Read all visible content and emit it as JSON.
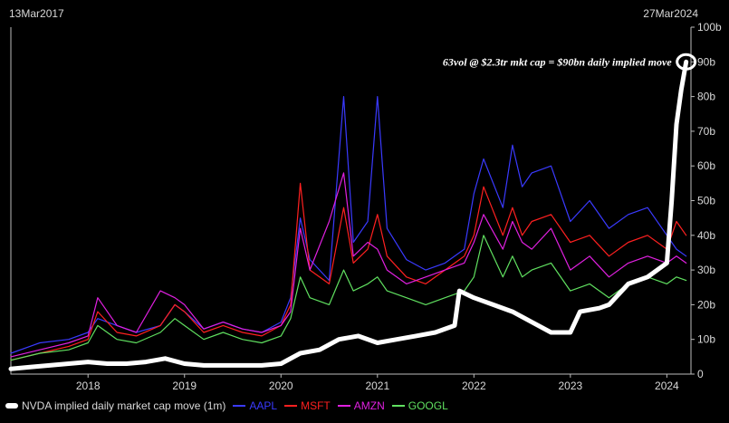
{
  "header": {
    "start_date": "13Mar2017",
    "end_date": "27Mar2024"
  },
  "annotation": "63vol @ $2.3tr mkt cap = $90bn daily implied move",
  "chart_data": {
    "type": "line",
    "x_range": [
      2017.2,
      2024.25
    ],
    "ylim": [
      0,
      100
    ],
    "x_ticks": [
      {
        "value": 2018,
        "label": "2018"
      },
      {
        "value": 2019,
        "label": "2019"
      },
      {
        "value": 2020,
        "label": "2020"
      },
      {
        "value": 2021,
        "label": "2021"
      },
      {
        "value": 2022,
        "label": "2022"
      },
      {
        "value": 2023,
        "label": "2023"
      },
      {
        "value": 2024,
        "label": "2024"
      }
    ],
    "y_ticks": [
      {
        "value": 0,
        "label": "0"
      },
      {
        "value": 10,
        "label": "10b"
      },
      {
        "value": 20,
        "label": "20b"
      },
      {
        "value": 30,
        "label": "30b"
      },
      {
        "value": 40,
        "label": "40b"
      },
      {
        "value": 50,
        "label": "50b"
      },
      {
        "value": 60,
        "label": "60b"
      },
      {
        "value": 70,
        "label": "70b"
      },
      {
        "value": 80,
        "label": "80b"
      },
      {
        "value": 90,
        "label": "90b"
      },
      {
        "value": 100,
        "label": "100b"
      }
    ],
    "series": [
      {
        "name": "AAPL",
        "color": "#3a3aff",
        "points": [
          [
            2017.2,
            6
          ],
          [
            2017.5,
            9
          ],
          [
            2017.8,
            10
          ],
          [
            2018.0,
            12
          ],
          [
            2018.1,
            16
          ],
          [
            2018.3,
            14
          ],
          [
            2018.5,
            12
          ],
          [
            2018.75,
            14
          ],
          [
            2018.9,
            20
          ],
          [
            2019.0,
            18
          ],
          [
            2019.2,
            13
          ],
          [
            2019.4,
            15
          ],
          [
            2019.6,
            13
          ],
          [
            2019.8,
            12
          ],
          [
            2020.0,
            15
          ],
          [
            2020.1,
            22
          ],
          [
            2020.2,
            45
          ],
          [
            2020.3,
            33
          ],
          [
            2020.5,
            27
          ],
          [
            2020.65,
            80
          ],
          [
            2020.75,
            38
          ],
          [
            2020.9,
            44
          ],
          [
            2021.0,
            80
          ],
          [
            2021.1,
            42
          ],
          [
            2021.3,
            33
          ],
          [
            2021.5,
            30
          ],
          [
            2021.7,
            32
          ],
          [
            2021.9,
            36
          ],
          [
            2022.0,
            52
          ],
          [
            2022.1,
            62
          ],
          [
            2022.3,
            48
          ],
          [
            2022.4,
            66
          ],
          [
            2022.5,
            54
          ],
          [
            2022.6,
            58
          ],
          [
            2022.8,
            60
          ],
          [
            2023.0,
            44
          ],
          [
            2023.2,
            50
          ],
          [
            2023.4,
            42
          ],
          [
            2023.6,
            46
          ],
          [
            2023.8,
            48
          ],
          [
            2024.0,
            40
          ],
          [
            2024.1,
            36
          ],
          [
            2024.2,
            34
          ]
        ]
      },
      {
        "name": "MSFT",
        "color": "#ff2020",
        "points": [
          [
            2017.2,
            4
          ],
          [
            2017.5,
            6
          ],
          [
            2017.8,
            8
          ],
          [
            2018.0,
            10
          ],
          [
            2018.1,
            18
          ],
          [
            2018.3,
            12
          ],
          [
            2018.5,
            11
          ],
          [
            2018.75,
            14
          ],
          [
            2018.9,
            20
          ],
          [
            2019.0,
            18
          ],
          [
            2019.2,
            12
          ],
          [
            2019.4,
            14
          ],
          [
            2019.6,
            12
          ],
          [
            2019.8,
            11
          ],
          [
            2020.0,
            14
          ],
          [
            2020.1,
            20
          ],
          [
            2020.2,
            55
          ],
          [
            2020.3,
            30
          ],
          [
            2020.5,
            26
          ],
          [
            2020.65,
            48
          ],
          [
            2020.75,
            32
          ],
          [
            2020.9,
            36
          ],
          [
            2021.0,
            46
          ],
          [
            2021.1,
            34
          ],
          [
            2021.3,
            28
          ],
          [
            2021.5,
            26
          ],
          [
            2021.7,
            30
          ],
          [
            2021.9,
            34
          ],
          [
            2022.0,
            40
          ],
          [
            2022.1,
            54
          ],
          [
            2022.3,
            40
          ],
          [
            2022.4,
            48
          ],
          [
            2022.5,
            40
          ],
          [
            2022.6,
            44
          ],
          [
            2022.8,
            46
          ],
          [
            2023.0,
            38
          ],
          [
            2023.2,
            40
          ],
          [
            2023.4,
            34
          ],
          [
            2023.6,
            38
          ],
          [
            2023.8,
            40
          ],
          [
            2024.0,
            36
          ],
          [
            2024.1,
            44
          ],
          [
            2024.2,
            40
          ]
        ]
      },
      {
        "name": "AMZN",
        "color": "#e020e0",
        "points": [
          [
            2017.2,
            5
          ],
          [
            2017.5,
            7
          ],
          [
            2017.8,
            9
          ],
          [
            2018.0,
            11
          ],
          [
            2018.1,
            22
          ],
          [
            2018.3,
            14
          ],
          [
            2018.5,
            12
          ],
          [
            2018.75,
            24
          ],
          [
            2018.9,
            22
          ],
          [
            2019.0,
            20
          ],
          [
            2019.2,
            13
          ],
          [
            2019.4,
            15
          ],
          [
            2019.6,
            13
          ],
          [
            2019.8,
            12
          ],
          [
            2020.0,
            14
          ],
          [
            2020.1,
            18
          ],
          [
            2020.2,
            42
          ],
          [
            2020.3,
            30
          ],
          [
            2020.5,
            44
          ],
          [
            2020.65,
            58
          ],
          [
            2020.75,
            34
          ],
          [
            2020.9,
            38
          ],
          [
            2021.0,
            36
          ],
          [
            2021.1,
            30
          ],
          [
            2021.3,
            26
          ],
          [
            2021.5,
            28
          ],
          [
            2021.7,
            30
          ],
          [
            2021.9,
            32
          ],
          [
            2022.0,
            38
          ],
          [
            2022.1,
            46
          ],
          [
            2022.3,
            36
          ],
          [
            2022.4,
            44
          ],
          [
            2022.5,
            38
          ],
          [
            2022.6,
            36
          ],
          [
            2022.8,
            42
          ],
          [
            2023.0,
            30
          ],
          [
            2023.2,
            34
          ],
          [
            2023.4,
            28
          ],
          [
            2023.6,
            32
          ],
          [
            2023.8,
            34
          ],
          [
            2024.0,
            32
          ],
          [
            2024.1,
            34
          ],
          [
            2024.2,
            32
          ]
        ]
      },
      {
        "name": "GOOGL",
        "color": "#60e060",
        "points": [
          [
            2017.2,
            4
          ],
          [
            2017.5,
            6
          ],
          [
            2017.8,
            7
          ],
          [
            2018.0,
            9
          ],
          [
            2018.1,
            14
          ],
          [
            2018.3,
            10
          ],
          [
            2018.5,
            9
          ],
          [
            2018.75,
            12
          ],
          [
            2018.9,
            16
          ],
          [
            2019.0,
            14
          ],
          [
            2019.2,
            10
          ],
          [
            2019.4,
            12
          ],
          [
            2019.6,
            10
          ],
          [
            2019.8,
            9
          ],
          [
            2020.0,
            11
          ],
          [
            2020.1,
            16
          ],
          [
            2020.2,
            28
          ],
          [
            2020.3,
            22
          ],
          [
            2020.5,
            20
          ],
          [
            2020.65,
            30
          ],
          [
            2020.75,
            24
          ],
          [
            2020.9,
            26
          ],
          [
            2021.0,
            28
          ],
          [
            2021.1,
            24
          ],
          [
            2021.3,
            22
          ],
          [
            2021.5,
            20
          ],
          [
            2021.7,
            22
          ],
          [
            2021.9,
            24
          ],
          [
            2022.0,
            28
          ],
          [
            2022.1,
            40
          ],
          [
            2022.3,
            28
          ],
          [
            2022.4,
            34
          ],
          [
            2022.5,
            28
          ],
          [
            2022.6,
            30
          ],
          [
            2022.8,
            32
          ],
          [
            2023.0,
            24
          ],
          [
            2023.2,
            26
          ],
          [
            2023.4,
            22
          ],
          [
            2023.6,
            26
          ],
          [
            2023.8,
            28
          ],
          [
            2024.0,
            26
          ],
          [
            2024.1,
            28
          ],
          [
            2024.2,
            27
          ]
        ]
      },
      {
        "name": "NVDA implied daily market cap move (1m)",
        "color": "#ffffff",
        "points": [
          [
            2017.2,
            1.5
          ],
          [
            2017.4,
            2
          ],
          [
            2017.6,
            2.5
          ],
          [
            2017.8,
            3
          ],
          [
            2018.0,
            3.5
          ],
          [
            2018.2,
            3
          ],
          [
            2018.4,
            3
          ],
          [
            2018.6,
            3.5
          ],
          [
            2018.8,
            4.5
          ],
          [
            2019.0,
            3
          ],
          [
            2019.2,
            2.5
          ],
          [
            2019.4,
            2.5
          ],
          [
            2019.6,
            2.5
          ],
          [
            2019.8,
            2.5
          ],
          [
            2020.0,
            3
          ],
          [
            2020.2,
            6
          ],
          [
            2020.4,
            7
          ],
          [
            2020.6,
            10
          ],
          [
            2020.8,
            11
          ],
          [
            2021.0,
            9
          ],
          [
            2021.2,
            10
          ],
          [
            2021.4,
            11
          ],
          [
            2021.6,
            12
          ],
          [
            2021.8,
            14
          ],
          [
            2021.85,
            24
          ],
          [
            2022.0,
            22
          ],
          [
            2022.2,
            20
          ],
          [
            2022.4,
            18
          ],
          [
            2022.6,
            15
          ],
          [
            2022.8,
            12
          ],
          [
            2023.0,
            12
          ],
          [
            2023.1,
            18
          ],
          [
            2023.3,
            19
          ],
          [
            2023.4,
            20
          ],
          [
            2023.6,
            26
          ],
          [
            2023.8,
            28
          ],
          [
            2024.0,
            32
          ],
          [
            2024.05,
            50
          ],
          [
            2024.1,
            72
          ],
          [
            2024.15,
            82
          ],
          [
            2024.2,
            90
          ]
        ]
      }
    ],
    "highlight": {
      "x": 2024.2,
      "y": 90
    }
  },
  "legend": [
    {
      "label": "NVDA implied daily market cap move (1m)",
      "color": "#ffffff",
      "thick": true
    },
    {
      "label": "AAPL",
      "color": "#3a3aff",
      "thick": false
    },
    {
      "label": "MSFT",
      "color": "#ff2020",
      "thick": false
    },
    {
      "label": "AMZN",
      "color": "#e020e0",
      "thick": false
    },
    {
      "label": "GOOGL",
      "color": "#60e060",
      "thick": false
    }
  ]
}
